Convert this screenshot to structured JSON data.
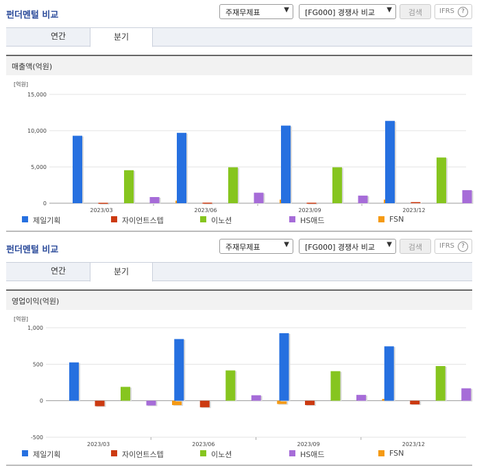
{
  "colors": {
    "jeil": "#2670e0",
    "science": "#cc3a11",
    "innocean": "#86c51f",
    "hsad": "#a66cd8",
    "fsn": "#f59a14"
  },
  "sections": [
    {
      "title": "펀더멘털 비교",
      "select1": "주재무제표",
      "select2": "[FG000] 경쟁사 비교",
      "search_btn": "검색",
      "ifrs": "IFRS",
      "help": "?",
      "tabs": [
        "연간",
        "분기"
      ],
      "active_tab": "분기",
      "panel_title": "매출액(억원)",
      "unit": "[억원]"
    },
    {
      "title": "펀더멘털 비교",
      "select1": "주재무제표",
      "select2": "[FG000] 경쟁사 비교",
      "search_btn": "검색",
      "ifrs": "IFRS",
      "help": "?",
      "tabs": [
        "연간",
        "분기"
      ],
      "active_tab": "분기",
      "panel_title": "영업이익(억원)",
      "unit": "[억원]"
    }
  ],
  "chart_data": [
    {
      "type": "bar",
      "title": "매출액(억원)",
      "categories": [
        "2023/03",
        "2023/06",
        "2023/09",
        "2023/12"
      ],
      "ylim": [
        0,
        15000
      ],
      "yticks": [
        "0",
        "5,000",
        "10,000",
        "15,000"
      ],
      "ytick_values": [
        0,
        5000,
        10000,
        15000
      ],
      "series": [
        {
          "name": "제일기획",
          "values": [
            9300,
            9700,
            10700,
            11350
          ]
        },
        {
          "name": "자이언트스텝",
          "values": [
            60,
            80,
            70,
            150
          ]
        },
        {
          "name": "이노션",
          "values": [
            4550,
            4950,
            4950,
            6300
          ]
        },
        {
          "name": "HS애드",
          "values": [
            850,
            1450,
            1050,
            1800
          ]
        },
        {
          "name": "FSN",
          "values": [
            350,
            500,
            500,
            250
          ]
        }
      ]
    },
    {
      "type": "bar",
      "title": "영업이익(억원)",
      "categories": [
        "2023/03",
        "2023/06",
        "2023/09",
        "2023/12"
      ],
      "ylim": [
        -500,
        1000
      ],
      "yticks": [
        "-500",
        "0",
        "500",
        "1,000"
      ],
      "ytick_values": [
        -500,
        0,
        500,
        1000
      ],
      "series": [
        {
          "name": "제일기획",
          "values": [
            525,
            845,
            925,
            745
          ]
        },
        {
          "name": "자이언트스텝",
          "values": [
            -75,
            -90,
            -60,
            -50
          ]
        },
        {
          "name": "이노션",
          "values": [
            190,
            415,
            405,
            475
          ]
        },
        {
          "name": "HS애드",
          "values": [
            -65,
            75,
            80,
            170
          ]
        },
        {
          "name": "FSN",
          "values": [
            -60,
            -45,
            25,
            0
          ]
        }
      ]
    }
  ]
}
